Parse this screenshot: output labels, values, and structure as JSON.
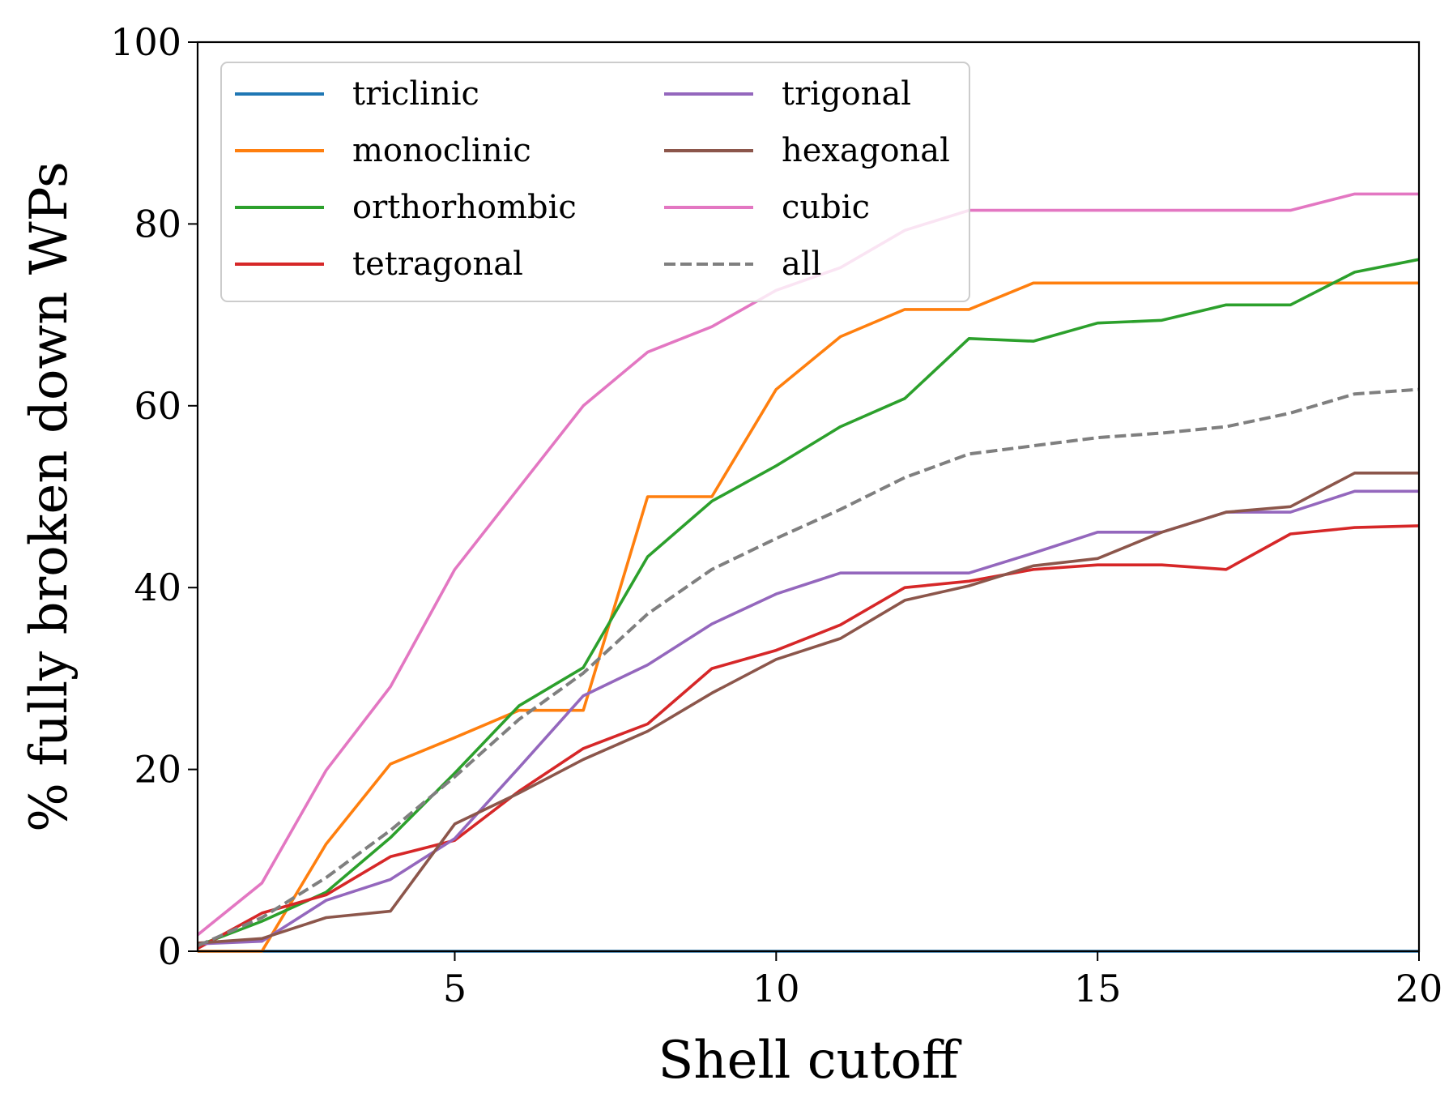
{
  "chart_data": {
    "type": "line",
    "title": "",
    "xlabel": "Shell cutoff",
    "ylabel": "% fully broken down WPs",
    "xlim": [
      1,
      20
    ],
    "ylim": [
      0,
      100
    ],
    "xticks": [
      5,
      10,
      15,
      20
    ],
    "yticks": [
      0,
      20,
      40,
      60,
      80,
      100
    ],
    "grid": false,
    "legend": "top-left, 2 columns",
    "x": [
      1,
      2,
      3,
      4,
      5,
      6,
      7,
      8,
      9,
      10,
      11,
      12,
      13,
      14,
      15,
      16,
      17,
      18,
      19,
      20
    ],
    "series": [
      {
        "name": "triclinic",
        "color": "#1f77b4",
        "dash": false,
        "values": [
          0,
          0,
          0,
          0,
          0,
          0,
          0,
          0,
          0,
          0,
          0,
          0,
          0,
          0,
          0,
          0,
          0,
          0,
          0,
          0
        ]
      },
      {
        "name": "monoclinic",
        "color": "#ff7f0e",
        "dash": false,
        "values": [
          0,
          0,
          11.8,
          20.6,
          23.5,
          26.5,
          26.5,
          50,
          50,
          61.8,
          67.6,
          70.6,
          70.6,
          73.5,
          73.5,
          73.5,
          73.5,
          73.5,
          73.5,
          73.5
        ]
      },
      {
        "name": "orthorhombic",
        "color": "#2ca02c",
        "dash": false,
        "values": [
          0.6,
          3.3,
          6.5,
          12.5,
          19.6,
          27,
          31.2,
          43.4,
          49.5,
          53.4,
          57.7,
          60.8,
          67.4,
          67.1,
          69.1,
          69.4,
          71.1,
          71.1,
          74.7,
          76.1
        ]
      },
      {
        "name": "tetragonal",
        "color": "#d62728",
        "dash": false,
        "values": [
          0.3,
          4.2,
          6.2,
          10.4,
          12.2,
          17.6,
          22.3,
          25,
          31.1,
          33.1,
          35.9,
          40,
          40.7,
          42,
          42.5,
          42.5,
          42,
          45.9,
          46.6,
          46.8
        ]
      },
      {
        "name": "trigonal",
        "color": "#9467bd",
        "dash": false,
        "values": [
          0.8,
          1.1,
          5.6,
          7.9,
          12.4,
          20.2,
          28.1,
          31.5,
          36,
          39.3,
          41.6,
          41.6,
          41.6,
          43.8,
          46.1,
          46.1,
          48.3,
          48.3,
          50.6,
          50.6
        ]
      },
      {
        "name": "hexagonal",
        "color": "#8c564b",
        "dash": false,
        "values": [
          0.9,
          1.4,
          3.7,
          4.4,
          14,
          17.4,
          21.1,
          24.2,
          28.4,
          32.1,
          34.4,
          38.6,
          40.2,
          42.4,
          43.2,
          46.1,
          48.3,
          48.9,
          52.6,
          52.6
        ]
      },
      {
        "name": "cubic",
        "color": "#e377c2",
        "dash": false,
        "values": [
          1.8,
          7.5,
          19.9,
          29.1,
          42,
          51,
          60,
          65.9,
          68.7,
          72.7,
          75.2,
          79.3,
          81.5,
          81.5,
          81.5,
          81.5,
          81.5,
          81.5,
          83.3,
          83.3
        ]
      },
      {
        "name": "all",
        "color": "#7f7f7f",
        "dash": true,
        "values": [
          0.6,
          3.7,
          8.1,
          13.3,
          19.2,
          25.5,
          30.6,
          37.1,
          42,
          45.4,
          48.6,
          52.1,
          54.7,
          55.6,
          56.5,
          57,
          57.7,
          59.2,
          61.3,
          61.8
        ]
      }
    ]
  }
}
